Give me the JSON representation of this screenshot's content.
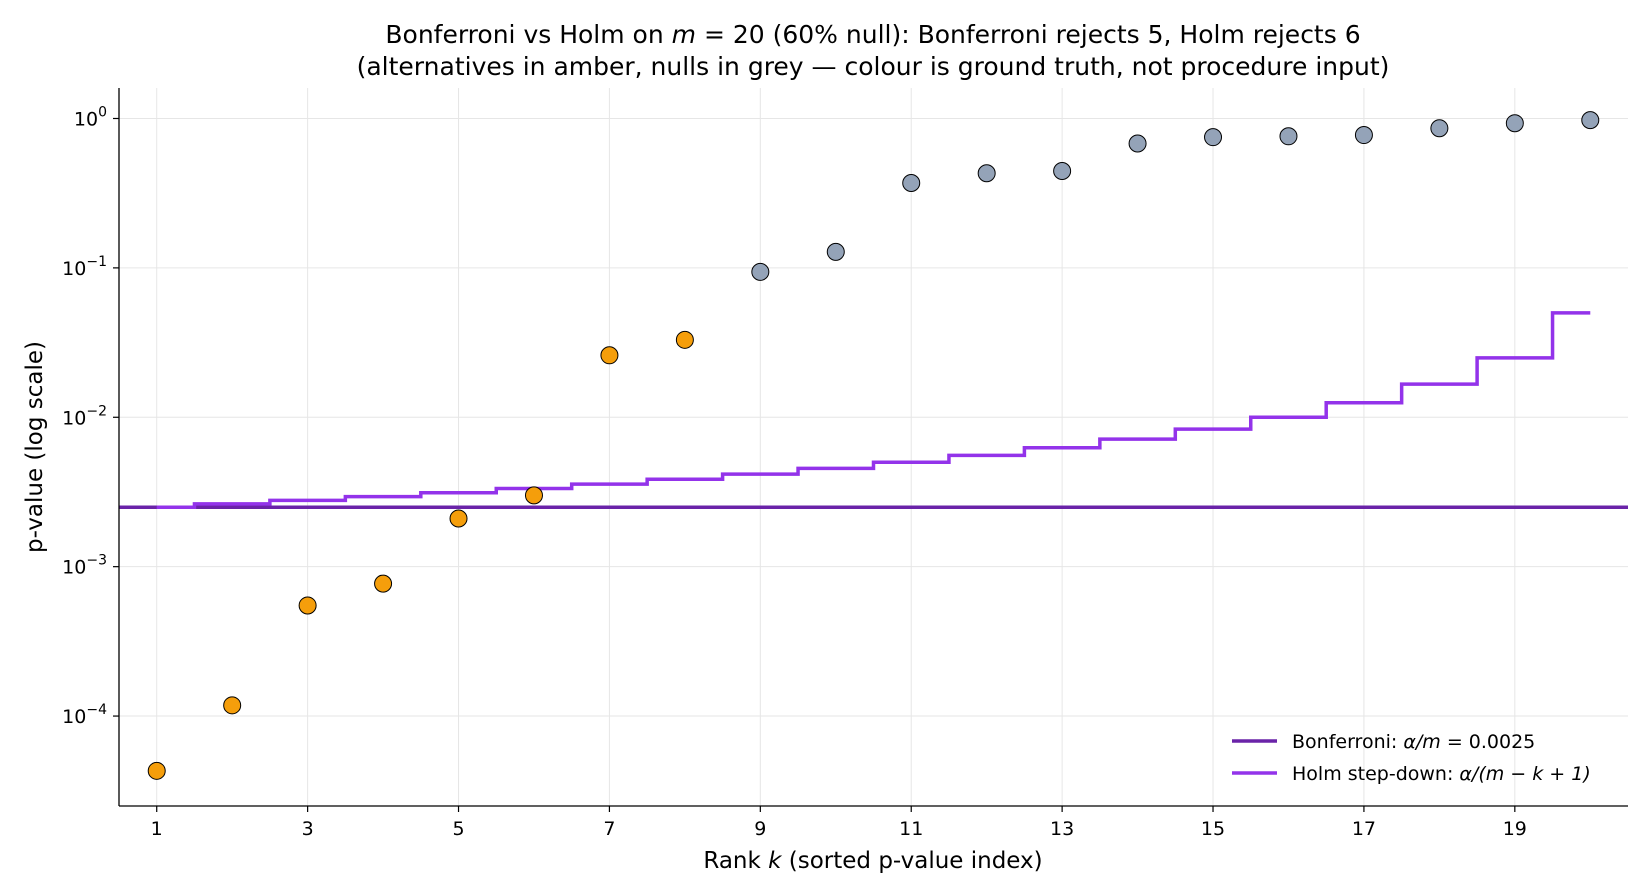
{
  "chart_data": {
    "type": "scatter",
    "title_line1_pre": "Bonferroni vs Holm on ",
    "title_line1_math": "m",
    "title_line1_eq": " = 20 (60% null): Bonferroni rejects 5, Holm rejects 6",
    "title_line2": "(alternatives in amber, nulls in grey — colour is ground truth, not procedure input)",
    "xlabel_pre": "Rank ",
    "xlabel_math": "k",
    "xlabel_post": " (sorted p-value index)",
    "ylabel": "p-value (log scale)",
    "yscale": "log",
    "xlim": [
      0.5,
      20.5
    ],
    "ylim": [
      2.5e-05,
      1.6
    ],
    "xticks": [
      1,
      3,
      5,
      7,
      9,
      11,
      13,
      15,
      17,
      19
    ],
    "yticks": [
      {
        "base": "10",
        "exp": "0",
        "value": 1
      },
      {
        "base": "10",
        "exp": "−1",
        "value": 0.1
      },
      {
        "base": "10",
        "exp": "−2",
        "value": 0.01
      },
      {
        "base": "10",
        "exp": "−3",
        "value": 0.001
      },
      {
        "base": "10",
        "exp": "−4",
        "value": 0.0001
      }
    ],
    "grid": true,
    "legend_position": "lower-right",
    "points": [
      {
        "k": 1,
        "p": 4.3e-05,
        "group": "alternative"
      },
      {
        "k": 2,
        "p": 0.000118,
        "group": "alternative"
      },
      {
        "k": 3,
        "p": 0.00055,
        "group": "alternative"
      },
      {
        "k": 4,
        "p": 0.00077,
        "group": "alternative"
      },
      {
        "k": 5,
        "p": 0.0021,
        "group": "alternative"
      },
      {
        "k": 6,
        "p": 0.003,
        "group": "alternative"
      },
      {
        "k": 7,
        "p": 0.026,
        "group": "alternative"
      },
      {
        "k": 8,
        "p": 0.033,
        "group": "alternative"
      },
      {
        "k": 9,
        "p": 0.094,
        "group": "null"
      },
      {
        "k": 10,
        "p": 0.128,
        "group": "null"
      },
      {
        "k": 11,
        "p": 0.37,
        "group": "null"
      },
      {
        "k": 12,
        "p": 0.43,
        "group": "null"
      },
      {
        "k": 13,
        "p": 0.445,
        "group": "null"
      },
      {
        "k": 14,
        "p": 0.68,
        "group": "null"
      },
      {
        "k": 15,
        "p": 0.75,
        "group": "null"
      },
      {
        "k": 16,
        "p": 0.76,
        "group": "null"
      },
      {
        "k": 17,
        "p": 0.775,
        "group": "null"
      },
      {
        "k": 18,
        "p": 0.86,
        "group": "null"
      },
      {
        "k": 19,
        "p": 0.93,
        "group": "null"
      },
      {
        "k": 20,
        "p": 0.975,
        "group": "null"
      }
    ],
    "bonferroni": {
      "value": 0.0025,
      "color": "#6a23a8"
    },
    "holm": {
      "alpha": 0.05,
      "m": 20,
      "color": "#9333ea"
    },
    "colors": {
      "alternative": "#f59e0b",
      "null": "#94a3b8",
      "marker_edge": "#000000",
      "grid": "#e6e6e6"
    },
    "legend": [
      {
        "key": "bonferroni",
        "pre": "Bonferroni: ",
        "math": "α/m",
        "post": " = 0.0025"
      },
      {
        "key": "holm",
        "pre": "Holm step-down: ",
        "math": "α/(m − k + 1)",
        "post": ""
      }
    ]
  }
}
